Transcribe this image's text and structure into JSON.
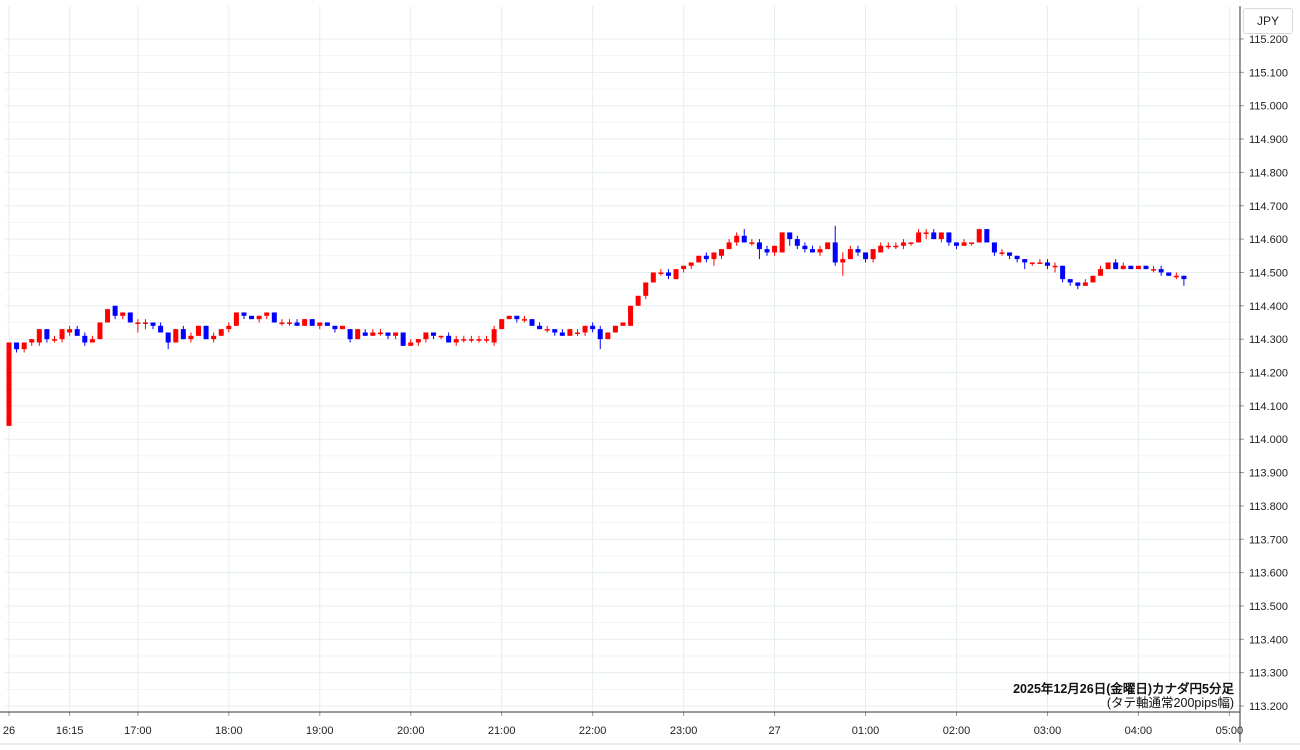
{
  "currency_label": "JPY",
  "caption": {
    "line1": "2025年12月26日(金曜日)カナダ円5分足",
    "line2": "(タテ軸通常200pips幅)"
  },
  "colors": {
    "up": "#ff0000",
    "down": "#0000ff",
    "grid": "#e6eef0",
    "axis": "#333333"
  },
  "chart_data": {
    "type": "candlestick",
    "interval": "5分足",
    "ylim": [
      113.2,
      115.2
    ],
    "yticks": [
      "113.200",
      "113.300",
      "113.400",
      "113.500",
      "113.600",
      "113.700",
      "113.800",
      "113.900",
      "114.000",
      "114.100",
      "114.200",
      "114.300",
      "114.400",
      "114.500",
      "114.600",
      "114.700",
      "114.800",
      "114.900",
      "115.000",
      "115.100",
      "115.200"
    ],
    "xticks": [
      {
        "label": "26",
        "bar": 0
      },
      {
        "label": "16:15",
        "bar": 8
      },
      {
        "label": "17:00",
        "bar": 17
      },
      {
        "label": "18:00",
        "bar": 29
      },
      {
        "label": "19:00",
        "bar": 41
      },
      {
        "label": "20:00",
        "bar": 53
      },
      {
        "label": "21:00",
        "bar": 65
      },
      {
        "label": "22:00",
        "bar": 77
      },
      {
        "label": "23:00",
        "bar": 89
      },
      {
        "label": "27",
        "bar": 101
      },
      {
        "label": "01:00",
        "bar": 113
      },
      {
        "label": "02:00",
        "bar": 125
      },
      {
        "label": "03:00",
        "bar": 137
      },
      {
        "label": "04:00",
        "bar": 149
      },
      {
        "label": "05:00",
        "bar": 161
      }
    ],
    "ohlc": [
      [
        114.04,
        114.29,
        114.04,
        114.29
      ],
      [
        114.29,
        114.29,
        114.26,
        114.27
      ],
      [
        114.27,
        114.29,
        114.26,
        114.29
      ],
      [
        114.29,
        114.3,
        114.28,
        114.3
      ],
      [
        114.29,
        114.33,
        114.28,
        114.33
      ],
      [
        114.33,
        114.33,
        114.29,
        114.3
      ],
      [
        114.3,
        114.31,
        114.29,
        114.3
      ],
      [
        114.3,
        114.33,
        114.29,
        114.33
      ],
      [
        114.32,
        114.34,
        114.31,
        114.33
      ],
      [
        114.33,
        114.34,
        114.31,
        114.31
      ],
      [
        114.31,
        114.32,
        114.28,
        114.29
      ],
      [
        114.29,
        114.31,
        114.29,
        114.3
      ],
      [
        114.3,
        114.35,
        114.3,
        114.35
      ],
      [
        114.35,
        114.39,
        114.35,
        114.39
      ],
      [
        114.4,
        114.4,
        114.36,
        114.37
      ],
      [
        114.37,
        114.38,
        114.36,
        114.38
      ],
      [
        114.38,
        114.38,
        114.35,
        114.35
      ],
      [
        114.35,
        114.36,
        114.32,
        114.35
      ],
      [
        114.35,
        114.36,
        114.33,
        114.35
      ],
      [
        114.35,
        114.35,
        114.33,
        114.34
      ],
      [
        114.34,
        114.35,
        114.32,
        114.32
      ],
      [
        114.32,
        114.32,
        114.27,
        114.29
      ],
      [
        114.29,
        114.33,
        114.29,
        114.33
      ],
      [
        114.33,
        114.34,
        114.3,
        114.3
      ],
      [
        114.3,
        114.32,
        114.29,
        114.31
      ],
      [
        114.31,
        114.34,
        114.31,
        114.34
      ],
      [
        114.34,
        114.34,
        114.3,
        114.3
      ],
      [
        114.3,
        114.32,
        114.29,
        114.31
      ],
      [
        114.31,
        114.33,
        114.31,
        114.33
      ],
      [
        114.33,
        114.35,
        114.32,
        114.34
      ],
      [
        114.34,
        114.38,
        114.34,
        114.38
      ],
      [
        114.38,
        114.38,
        114.36,
        114.37
      ],
      [
        114.37,
        114.37,
        114.36,
        114.36
      ],
      [
        114.36,
        114.37,
        114.35,
        114.37
      ],
      [
        114.37,
        114.38,
        114.36,
        114.38
      ],
      [
        114.38,
        114.38,
        114.35,
        114.35
      ],
      [
        114.35,
        114.36,
        114.34,
        114.35
      ],
      [
        114.35,
        114.36,
        114.34,
        114.35
      ],
      [
        114.35,
        114.36,
        114.34,
        114.34
      ],
      [
        114.34,
        114.36,
        114.34,
        114.36
      ],
      [
        114.36,
        114.36,
        114.34,
        114.34
      ],
      [
        114.34,
        114.35,
        114.33,
        114.35
      ],
      [
        114.35,
        114.35,
        114.34,
        114.34
      ],
      [
        114.34,
        114.34,
        114.32,
        114.33
      ],
      [
        114.33,
        114.34,
        114.33,
        114.34
      ],
      [
        114.33,
        114.33,
        114.29,
        114.3
      ],
      [
        114.3,
        114.33,
        114.3,
        114.33
      ],
      [
        114.32,
        114.33,
        114.31,
        114.31
      ],
      [
        114.31,
        114.33,
        114.31,
        114.32
      ],
      [
        114.32,
        114.33,
        114.31,
        114.32
      ],
      [
        114.32,
        114.32,
        114.3,
        114.31
      ],
      [
        114.31,
        114.32,
        114.3,
        114.32
      ],
      [
        114.32,
        114.32,
        114.28,
        114.28
      ],
      [
        114.28,
        114.3,
        114.28,
        114.29
      ],
      [
        114.29,
        114.3,
        114.28,
        114.3
      ],
      [
        114.3,
        114.32,
        114.29,
        114.32
      ],
      [
        114.32,
        114.32,
        114.3,
        114.31
      ],
      [
        114.31,
        114.31,
        114.3,
        114.31
      ],
      [
        114.31,
        114.32,
        114.29,
        114.29
      ],
      [
        114.29,
        114.31,
        114.28,
        114.3
      ],
      [
        114.3,
        114.31,
        114.29,
        114.3
      ],
      [
        114.3,
        114.31,
        114.29,
        114.3
      ],
      [
        114.3,
        114.31,
        114.29,
        114.3
      ],
      [
        114.3,
        114.31,
        114.29,
        114.3
      ],
      [
        114.29,
        114.34,
        114.28,
        114.33
      ],
      [
        114.33,
        114.36,
        114.33,
        114.36
      ],
      [
        114.36,
        114.37,
        114.36,
        114.37
      ],
      [
        114.37,
        114.37,
        114.35,
        114.36
      ],
      [
        114.36,
        114.37,
        114.35,
        114.36
      ],
      [
        114.36,
        114.36,
        114.34,
        114.34
      ],
      [
        114.34,
        114.35,
        114.33,
        114.33
      ],
      [
        114.33,
        114.34,
        114.32,
        114.33
      ],
      [
        114.33,
        114.33,
        114.31,
        114.32
      ],
      [
        114.32,
        114.33,
        114.31,
        114.31
      ],
      [
        114.31,
        114.33,
        114.31,
        114.33
      ],
      [
        114.32,
        114.33,
        114.31,
        114.32
      ],
      [
        114.32,
        114.34,
        114.31,
        114.34
      ],
      [
        114.34,
        114.35,
        114.32,
        114.33
      ],
      [
        114.33,
        114.34,
        114.27,
        114.3
      ],
      [
        114.3,
        114.32,
        114.3,
        114.32
      ],
      [
        114.32,
        114.34,
        114.32,
        114.34
      ],
      [
        114.34,
        114.35,
        114.34,
        114.35
      ],
      [
        114.34,
        114.4,
        114.34,
        114.4
      ],
      [
        114.4,
        114.43,
        114.4,
        114.43
      ],
      [
        114.43,
        114.47,
        114.42,
        114.47
      ],
      [
        114.47,
        114.5,
        114.47,
        114.5
      ],
      [
        114.5,
        114.51,
        114.49,
        114.5
      ],
      [
        114.5,
        114.51,
        114.48,
        114.49
      ],
      [
        114.48,
        114.51,
        114.48,
        114.51
      ],
      [
        114.51,
        114.52,
        114.5,
        114.52
      ],
      [
        114.52,
        114.53,
        114.51,
        114.53
      ],
      [
        114.53,
        114.55,
        114.53,
        114.55
      ],
      [
        114.55,
        114.56,
        114.53,
        114.54
      ],
      [
        114.54,
        114.56,
        114.52,
        114.56
      ],
      [
        114.55,
        114.57,
        114.54,
        114.57
      ],
      [
        114.57,
        114.6,
        114.57,
        114.59
      ],
      [
        114.59,
        114.62,
        114.58,
        114.61
      ],
      [
        114.61,
        114.63,
        114.59,
        114.59
      ],
      [
        114.59,
        114.6,
        114.58,
        114.59
      ],
      [
        114.59,
        114.6,
        114.54,
        114.57
      ],
      [
        114.57,
        114.58,
        114.55,
        114.56
      ],
      [
        114.56,
        114.58,
        114.55,
        114.58
      ],
      [
        114.56,
        114.62,
        114.56,
        114.62
      ],
      [
        114.62,
        114.62,
        114.58,
        114.6
      ],
      [
        114.6,
        114.61,
        114.57,
        114.58
      ],
      [
        114.58,
        114.59,
        114.56,
        114.57
      ],
      [
        114.57,
        114.58,
        114.56,
        114.56
      ],
      [
        114.56,
        114.58,
        114.55,
        114.57
      ],
      [
        114.57,
        114.59,
        114.57,
        114.59
      ],
      [
        114.59,
        114.64,
        114.52,
        114.53
      ],
      [
        114.53,
        114.56,
        114.49,
        114.54
      ],
      [
        114.54,
        114.58,
        114.54,
        114.57
      ],
      [
        114.57,
        114.58,
        114.55,
        114.56
      ],
      [
        114.56,
        114.56,
        114.53,
        114.54
      ],
      [
        114.54,
        114.57,
        114.53,
        114.57
      ],
      [
        114.56,
        114.59,
        114.56,
        114.58
      ],
      [
        114.58,
        114.59,
        114.57,
        114.58
      ],
      [
        114.58,
        114.59,
        114.57,
        114.58
      ],
      [
        114.58,
        114.6,
        114.57,
        114.59
      ],
      [
        114.59,
        114.59,
        114.58,
        114.59
      ],
      [
        114.59,
        114.63,
        114.59,
        114.62
      ],
      [
        114.62,
        114.63,
        114.6,
        114.62
      ],
      [
        114.62,
        114.63,
        114.6,
        114.6
      ],
      [
        114.6,
        114.62,
        114.59,
        114.62
      ],
      [
        114.62,
        114.62,
        114.58,
        114.59
      ],
      [
        114.59,
        114.59,
        114.57,
        114.58
      ],
      [
        114.58,
        114.6,
        114.58,
        114.59
      ],
      [
        114.59,
        114.59,
        114.58,
        114.59
      ],
      [
        114.59,
        114.63,
        114.59,
        114.63
      ],
      [
        114.63,
        114.63,
        114.59,
        114.59
      ],
      [
        114.59,
        114.59,
        114.55,
        114.56
      ],
      [
        114.56,
        114.57,
        114.55,
        114.56
      ],
      [
        114.56,
        114.56,
        114.54,
        114.55
      ],
      [
        114.55,
        114.55,
        114.53,
        114.54
      ],
      [
        114.54,
        114.54,
        114.51,
        114.53
      ],
      [
        114.53,
        114.53,
        114.52,
        114.53
      ],
      [
        114.53,
        114.54,
        114.53,
        114.53
      ],
      [
        114.53,
        114.54,
        114.51,
        114.52
      ],
      [
        114.52,
        114.53,
        114.5,
        114.52
      ],
      [
        114.52,
        114.52,
        114.47,
        114.48
      ],
      [
        114.48,
        114.48,
        114.46,
        114.47
      ],
      [
        114.47,
        114.47,
        114.45,
        114.46
      ],
      [
        114.46,
        114.48,
        114.46,
        114.47
      ],
      [
        114.47,
        114.49,
        114.47,
        114.49
      ],
      [
        114.49,
        114.52,
        114.49,
        114.51
      ],
      [
        114.51,
        114.53,
        114.51,
        114.53
      ],
      [
        114.53,
        114.54,
        114.51,
        114.51
      ],
      [
        114.51,
        114.53,
        114.51,
        114.52
      ],
      [
        114.52,
        114.52,
        114.51,
        114.51
      ],
      [
        114.51,
        114.52,
        114.51,
        114.52
      ],
      [
        114.52,
        114.52,
        114.51,
        114.51
      ],
      [
        114.51,
        114.52,
        114.5,
        114.51
      ],
      [
        114.51,
        114.52,
        114.49,
        114.5
      ],
      [
        114.5,
        114.5,
        114.49,
        114.49
      ],
      [
        114.49,
        114.5,
        114.48,
        114.49
      ],
      [
        114.49,
        114.49,
        114.46,
        114.48
      ]
    ]
  }
}
